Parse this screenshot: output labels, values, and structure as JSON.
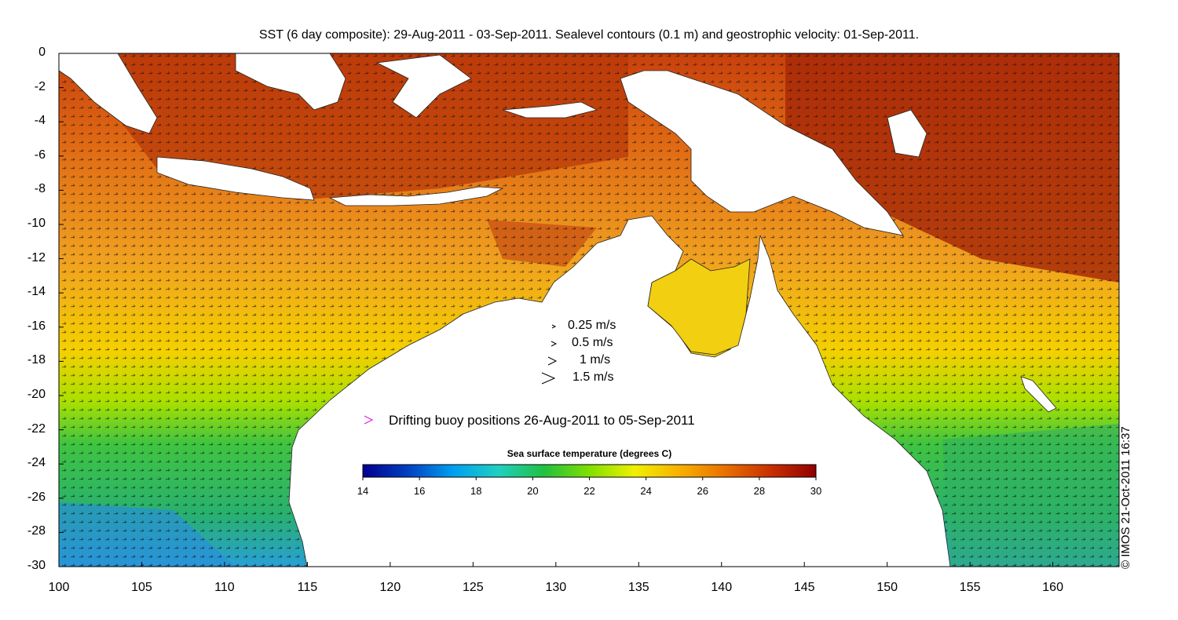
{
  "title": "SST (6 day composite): 29-Aug-2011 - 03-Sep-2011. Sealevel contours (0.1 m) and geostrophic velocity: 01-Sep-2011.",
  "credit": "© IMOS 21-Oct-2011 16:37",
  "axes": {
    "y_ticks": [
      "0",
      "-2",
      "-4",
      "-6",
      "-8",
      "-10",
      "-12",
      "-14",
      "-16",
      "-18",
      "-20",
      "-22",
      "-24",
      "-26",
      "-28",
      "-30"
    ],
    "x_ticks": [
      "100",
      "105",
      "110",
      "115",
      "120",
      "125",
      "130",
      "135",
      "140",
      "145",
      "150",
      "155",
      "160"
    ],
    "xlim": [
      100,
      164
    ],
    "ylim": [
      -30,
      0
    ]
  },
  "velocity_legend": [
    {
      "label": "0.25 m/s",
      "speed": 0.25
    },
    {
      "label": "0.5 m/s",
      "speed": 0.5
    },
    {
      "label": "1 m/s",
      "speed": 1
    },
    {
      "label": "1.5 m/s",
      "speed": 1.5
    }
  ],
  "buoy_legend": {
    "label": "Drifting buoy positions 26-Aug-2011 to 05-Sep-2011",
    "marker": ">",
    "color": "#e020e0"
  },
  "colorbar": {
    "title": "Sea surface temperature (degrees C)",
    "ticks": [
      "14",
      "16",
      "18",
      "20",
      "22",
      "24",
      "26",
      "28",
      "30"
    ],
    "range": [
      14,
      30
    ],
    "colors": [
      "#00008f",
      "#0040c0",
      "#00a0f0",
      "#20d0c0",
      "#20c040",
      "#80e000",
      "#f0f000",
      "#f8b000",
      "#e87000",
      "#c83000",
      "#900000"
    ]
  },
  "palette": {
    "land": "#ffffff",
    "ocean_warm": "#e07818",
    "ocean_hot": "#b83008",
    "ocean_mid": "#f4b820",
    "ocean_cool": "#38c040",
    "ocean_cold": "#20a0e0"
  }
}
